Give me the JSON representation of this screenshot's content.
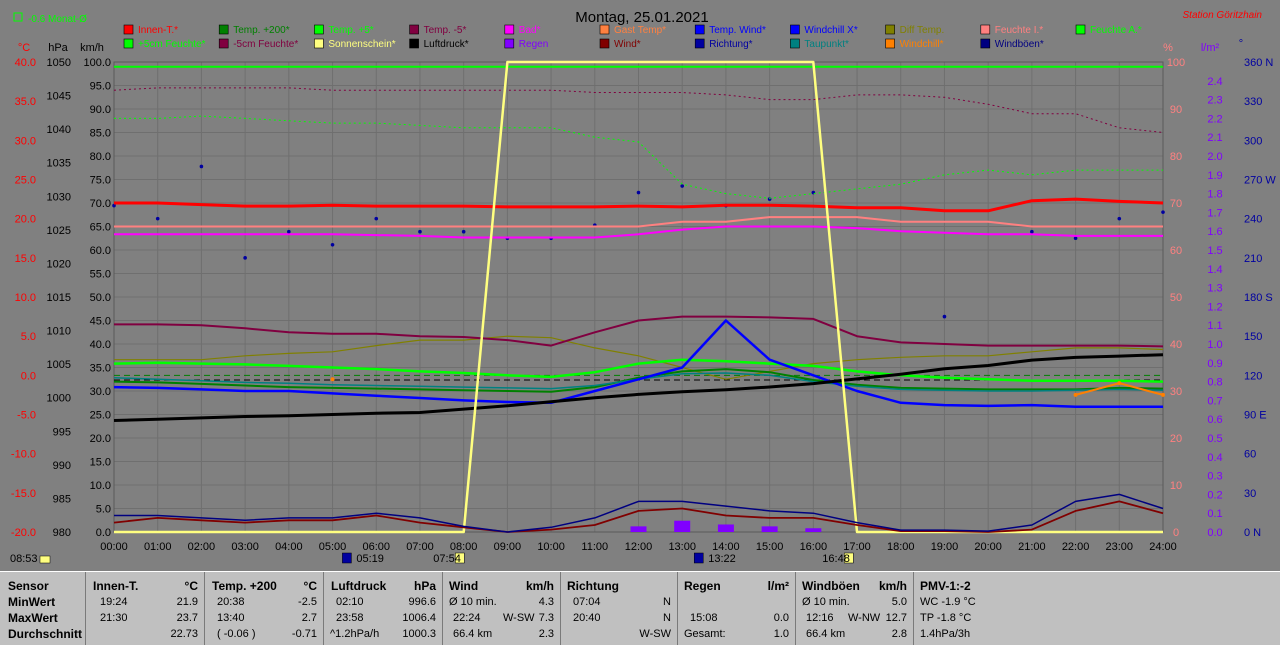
{
  "header": {
    "title": "Montag, 25.01.2021",
    "station": "Station Göritzhain",
    "month_label": "-0.6 Monat-Ø"
  },
  "axes": {
    "unit_celsius": "°C",
    "unit_hpa": "hPa",
    "unit_kmh": "km/h",
    "unit_percent": "%",
    "unit_lm2": "l/m²",
    "unit_deg": "°",
    "celsius_ticks": [
      "40.0",
      "35.0",
      "30.0",
      "25.0",
      "20.0",
      "15.0",
      "10.0",
      "5.0",
      "0.0",
      "-5.0",
      "-10.0",
      "-15.0",
      "-20.0"
    ],
    "hpa_ticks": [
      "1050",
      "1045",
      "1040",
      "1035",
      "1030",
      "1025",
      "1020",
      "1015",
      "1010",
      "1005",
      "1000",
      "995",
      "990",
      "985",
      "980"
    ],
    "kmh_ticks": [
      "100.0",
      "95.0",
      "90.0",
      "85.0",
      "80.0",
      "75.0",
      "70.0",
      "65.0",
      "60.0",
      "55.0",
      "50.0",
      "45.0",
      "40.0",
      "35.0",
      "30.0",
      "25.0",
      "20.0",
      "15.0",
      "10.0",
      "5.0",
      "0.0"
    ],
    "percent_ticks": [
      "100",
      "90",
      "80",
      "70",
      "60",
      "50",
      "40",
      "30",
      "20",
      "10",
      "0"
    ],
    "rain_ticks": [
      "2.4",
      "2.3",
      "2.2",
      "2.1",
      "2.0",
      "1.9",
      "1.8",
      "1.7",
      "1.6",
      "1.5",
      "1.4",
      "1.3",
      "1.2",
      "1.1",
      "1.0",
      "0.9",
      "0.8",
      "0.7",
      "0.6",
      "0.5",
      "0.4",
      "0.3",
      "0.2",
      "0.1",
      "0.0"
    ],
    "dir_ticks": [
      "360 N",
      "330",
      "300",
      "270 W",
      "240",
      "210",
      "180 S",
      "150",
      "120",
      "90 E",
      "60",
      "30",
      "0 N"
    ],
    "time_ticks": [
      "00:00",
      "01:00",
      "02:00",
      "03:00",
      "04:00",
      "05:00",
      "06:00",
      "07:00",
      "08:00",
      "09:00",
      "10:00",
      "11:00",
      "12:00",
      "13:00",
      "14:00",
      "15:00",
      "16:00",
      "17:00",
      "18:00",
      "19:00",
      "20:00",
      "21:00",
      "22:00",
      "23:00",
      "24:00"
    ]
  },
  "markers": {
    "left": "08:53",
    "moonrise": "05:19",
    "sunrise": "07:54",
    "moonset": "13:22",
    "sunset": "16:48"
  },
  "legend": [
    {
      "label": "Innen-T.*",
      "color": "#ff0000"
    },
    {
      "label": "Temp. +200*",
      "color": "#008000"
    },
    {
      "label": "Temp. +5*",
      "color": "#00ff00"
    },
    {
      "label": "Temp. -5*",
      "color": "#800040"
    },
    {
      "label": "Bad*",
      "color": "#ff00ff"
    },
    {
      "label": "Gast Temp*",
      "color": "#ff8040"
    },
    {
      "label": "Temp. Wind*",
      "color": "#0000ff"
    },
    {
      "label": "Windchill X*",
      "color": "#0000ff"
    },
    {
      "label": "Diff Temp.",
      "color": "#808000"
    },
    {
      "label": "Feuchte I.*",
      "color": "#ff8080"
    },
    {
      "label": "Feuchte A.*",
      "color": "#00ff00"
    },
    {
      "label": "+5cm Feuchte*",
      "color": "#00ff00"
    },
    {
      "label": "-5cm Feuchte*",
      "color": "#800040"
    },
    {
      "label": "Sonnenschein*",
      "color": "#ffff80"
    },
    {
      "label": "Luftdruck*",
      "color": "#000000"
    },
    {
      "label": "Regen",
      "color": "#8000ff"
    },
    {
      "label": "Wind*",
      "color": "#800000"
    },
    {
      "label": "Richtung*",
      "color": "#0000a0"
    },
    {
      "label": "Taupunkt*",
      "color": "#008080"
    },
    {
      "label": "Windchill*",
      "color": "#ff8000"
    },
    {
      "label": "Windböen*",
      "color": "#000080"
    }
  ],
  "colors": {
    "innen": "#ff0000",
    "feuchteI": "#ff8080",
    "bad": "#ff00ff",
    "tm5": "#800040",
    "feuchteA": "#00ff00",
    "tp5": "#00ff00",
    "t200": "#008000",
    "twind": "#0000ff",
    "taupunkt": "#008080",
    "druck": "#000000",
    "sonne": "#ffff80",
    "wind": "#800000",
    "boeen": "#000080",
    "richtung": "#0000a0",
    "regen": "#8000ff",
    "diff": "#808000",
    "windchill": "#ff8000"
  },
  "chart_data": {
    "type": "line",
    "title": "Montag, 25.01.2021",
    "xlim": [
      "00:00",
      "24:00"
    ],
    "ylim_celsius": [
      -20,
      40
    ],
    "ylim_hpa": [
      980,
      1050
    ],
    "ylim_kmh": [
      0,
      100
    ],
    "ylim_percent": [
      0,
      100
    ],
    "ylim_rain": [
      0,
      2.5
    ],
    "ylim_direction": [
      0,
      360
    ],
    "x_hours": [
      0,
      1,
      2,
      3,
      4,
      5,
      6,
      7,
      8,
      9,
      10,
      11,
      12,
      13,
      14,
      15,
      16,
      17,
      18,
      19,
      20,
      21,
      22,
      23,
      24
    ],
    "series": [
      {
        "name": "Innen-T.*",
        "axis": "celsius",
        "key": "innen",
        "values": [
          22.0,
          22.0,
          21.8,
          21.6,
          21.6,
          21.7,
          21.6,
          21.6,
          21.6,
          21.5,
          21.5,
          21.5,
          21.6,
          21.5,
          21.7,
          21.7,
          21.6,
          21.4,
          21.4,
          21.0,
          21.0,
          22.3,
          22.5,
          22.2,
          22.0
        ]
      },
      {
        "name": "Feuchte I.*",
        "axis": "percent",
        "key": "feuchteI",
        "values": [
          65,
          65,
          65,
          65,
          65,
          65,
          65,
          65,
          65,
          65,
          65,
          65,
          65,
          66,
          66,
          67,
          67,
          67,
          66,
          66,
          66,
          65,
          65,
          65,
          65
        ]
      },
      {
        "name": "Bad*",
        "axis": "celsius",
        "key": "bad",
        "values": [
          18.0,
          18.0,
          18.0,
          18.0,
          18.0,
          18.0,
          17.9,
          17.8,
          17.6,
          17.6,
          17.6,
          17.6,
          18.0,
          18.6,
          19.0,
          19.0,
          19.0,
          18.8,
          18.4,
          18.2,
          18.0,
          18.0,
          17.8,
          17.8,
          17.8
        ]
      },
      {
        "name": "Temp. -5*",
        "axis": "celsius",
        "key": "tm5",
        "values": [
          6.5,
          6.5,
          6.4,
          6.0,
          5.5,
          5.3,
          5.3,
          5.0,
          4.9,
          4.5,
          3.8,
          5.5,
          7.0,
          7.5,
          7.5,
          7.4,
          7.2,
          5.0,
          4.2,
          4.0,
          3.8,
          3.8,
          3.8,
          3.8,
          3.7
        ]
      },
      {
        "name": "Feuchte A.*",
        "axis": "kmh",
        "key": "feuchteA",
        "values": [
          99,
          99,
          99,
          99,
          99,
          99,
          99,
          99,
          99,
          99,
          99,
          99,
          99,
          99,
          99,
          99,
          99,
          99,
          99,
          99,
          99,
          99,
          99,
          99,
          99
        ]
      },
      {
        "name": "+5cm Feuchte*",
        "axis": "kmh",
        "key": "feuchte5",
        "values": [
          88,
          88,
          88.5,
          88,
          87.5,
          87,
          87,
          86.5,
          86,
          86,
          86,
          84,
          83,
          74,
          72,
          71,
          72,
          73,
          74,
          76,
          77,
          76,
          77,
          77,
          77
        ]
      },
      {
        "name": "-5cm Feuchte*",
        "axis": "kmh",
        "key": "feuchtem5",
        "values": [
          94,
          94.5,
          94.5,
          94.5,
          94.5,
          94,
          94,
          94,
          94,
          94,
          94,
          93.5,
          93.5,
          93.5,
          93,
          92,
          92,
          93,
          93,
          92.5,
          91,
          89,
          89,
          86,
          85
        ]
      },
      {
        "name": "Temp. +5*",
        "axis": "celsius",
        "key": "tp5",
        "values": [
          1.5,
          1.6,
          1.5,
          1.4,
          1.2,
          1.0,
          0.8,
          0.5,
          0.3,
          0.0,
          -0.2,
          0.4,
          1.5,
          2.0,
          1.8,
          1.5,
          1.2,
          0.5,
          0.0,
          -0.3,
          -0.5,
          -0.7,
          -0.7,
          -0.7,
          -0.8
        ]
      },
      {
        "name": "Temp. +200*",
        "axis": "celsius",
        "key": "t200",
        "values": [
          -0.8,
          -0.9,
          -1.1,
          -1.3,
          -1.5,
          -1.6,
          -1.7,
          -1.8,
          -1.9,
          -2.0,
          -2.1,
          -1.5,
          -0.3,
          0.5,
          0.8,
          0.4,
          -0.6,
          -1.2,
          -1.6,
          -1.7,
          -1.8,
          -1.8,
          -1.8,
          -1.6,
          -1.7
        ]
      },
      {
        "name": "Taupunkt*",
        "axis": "celsius",
        "key": "taupunkt",
        "values": [
          -0.3,
          -0.5,
          -0.7,
          -0.9,
          -1.0,
          -1.2,
          -1.3,
          -1.4,
          -1.5,
          -1.6,
          -1.7,
          -1.3,
          -0.5,
          0.2,
          0.3,
          0.0,
          -0.8,
          -1.4,
          -1.8,
          -1.9,
          -2.0,
          -2.0,
          -1.9,
          -1.8,
          -1.9
        ]
      },
      {
        "name": "Temp. Wind*",
        "axis": "celsius",
        "key": "twind",
        "values": [
          -1.5,
          -1.6,
          -1.8,
          -2.0,
          -2.0,
          -2.3,
          -2.6,
          -2.9,
          -3.2,
          -3.4,
          -3.5,
          -2.0,
          -0.5,
          1.0,
          7.0,
          2.0,
          0.0,
          -2.0,
          -3.5,
          -3.8,
          -3.9,
          -3.8,
          -4.0,
          -4.0,
          -4.0
        ]
      },
      {
        "name": "Luftdruck*",
        "axis": "hpa",
        "key": "druck",
        "values": [
          996.6,
          996.8,
          997.0,
          997.2,
          997.3,
          997.5,
          997.7,
          997.8,
          998.3,
          998.8,
          999.4,
          1000.0,
          1000.5,
          1000.9,
          1001.2,
          1001.6,
          1002.1,
          1002.8,
          1003.5,
          1004.3,
          1004.8,
          1005.6,
          1006.0,
          1006.2,
          1006.4
        ]
      },
      {
        "name": "Sonnenschein*",
        "axis": "kmh",
        "key": "sonne",
        "values": [
          0,
          0,
          0,
          0,
          0,
          0,
          0,
          0,
          0,
          100,
          100,
          100,
          100,
          100,
          100,
          100,
          100,
          0,
          0,
          0,
          0,
          0,
          0,
          0,
          0
        ]
      },
      {
        "name": "Wind*",
        "axis": "kmh",
        "key": "wind",
        "values": [
          2.0,
          3.0,
          2.5,
          2.0,
          2.5,
          2.5,
          3.5,
          2.0,
          1.0,
          0,
          0.5,
          1.5,
          4.5,
          5.0,
          3.5,
          3.0,
          3.0,
          1.5,
          0.2,
          0.2,
          0,
          0.5,
          4.5,
          6.5,
          4.0
        ]
      },
      {
        "name": "Windböen*",
        "axis": "kmh",
        "key": "boeen",
        "values": [
          3.5,
          3.5,
          3.0,
          2.5,
          3.0,
          3.0,
          4.0,
          3.0,
          1.2,
          0,
          1.0,
          3.0,
          6.5,
          6.5,
          5.5,
          4.5,
          4.0,
          2.0,
          0.4,
          0.4,
          0.2,
          1.5,
          6.5,
          8.0,
          5.0
        ]
      }
    ],
    "windchill_values": [
      null,
      null,
      null,
      null,
      null,
      -0.5,
      null,
      null,
      null,
      null,
      null,
      null,
      null,
      null,
      null,
      null,
      null,
      null,
      null,
      null,
      null,
      null,
      -2.5,
      -1.0,
      -2.5
    ],
    "diff_values": [
      2.0,
      2.0,
      2.0,
      2.5,
      2.8,
      3.0,
      3.8,
      4.5,
      4.5,
      5.0,
      4.8,
      3.5,
      2.5,
      1.0,
      -0.5,
      0.5,
      1.5,
      2.0,
      2.3,
      2.5,
      2.5,
      3.0,
      3.5,
      3.5,
      3.3
    ],
    "direction_values": [
      250,
      240,
      280,
      210,
      230,
      220,
      240,
      230,
      230,
      225,
      225,
      235,
      260,
      265,
      250,
      255,
      260,
      null,
      null,
      165,
      null,
      230,
      225,
      240,
      245
    ],
    "rain_values": [
      0,
      0,
      0,
      0,
      0,
      0,
      0,
      0,
      0,
      0,
      0,
      0,
      0.03,
      0.06,
      0.04,
      0.03,
      0.02,
      0,
      0,
      0,
      0,
      0,
      0,
      0,
      0
    ],
    "reference_lines": {
      "zero_celsius": 0.0,
      "month_avg_celsius": -0.6
    }
  },
  "stats": {
    "rows": [
      "Sensor",
      "MinWert",
      "MaxWert",
      "Durchschnitt"
    ],
    "innen": {
      "title": "Innen-T.",
      "unit": "°C",
      "min_time": "19:24",
      "min": "21.9",
      "max_time": "21:30",
      "max": "23.7",
      "avg": "22.73"
    },
    "temp200": {
      "title": "Temp. +200",
      "unit": "°C",
      "min_time": "20:38",
      "min": "-2.5",
      "max_time": "13:40",
      "max": "2.7",
      "avg_note": "( -0.06 )",
      "avg": "-0.71"
    },
    "druck": {
      "title": "Luftdruck",
      "unit": "hPa",
      "min_time": "02:10",
      "min": "996.6",
      "max_time": "23:58",
      "max": "1006.4",
      "avg_note": "^1.2hPa/h",
      "avg": "1000.3"
    },
    "wind": {
      "title": "Wind",
      "unit": "km/h",
      "min_label": "Ø 10 min.",
      "min": "4.3",
      "max_time": "22:24",
      "max_dir": "W-SW",
      "max": "7.3",
      "avg_label": "66.4 km",
      "avg": "2.3"
    },
    "richtung": {
      "title": "Richtung",
      "min_time": "07:04",
      "min": "N",
      "max_time": "20:40",
      "max": "N",
      "avg": "W-SW"
    },
    "regen": {
      "title": "Regen",
      "unit": "l/m²",
      "max_time": "15:08",
      "max": "0.0",
      "avg_label": "Gesamt:",
      "avg": "1.0"
    },
    "boeen": {
      "title": "Windböen",
      "unit": "km/h",
      "min_label": "Ø 10 min.",
      "min": "5.0",
      "max_time": "12:16",
      "max_dir": "W-NW",
      "max": "12.7",
      "avg_label": "66.4 km",
      "avg": "2.8"
    },
    "pmv": {
      "title": "PMV-1:-2",
      "min": "WC -1.9 °C",
      "max": "TP -1.8 °C",
      "avg": "1.4hPa/3h"
    }
  }
}
